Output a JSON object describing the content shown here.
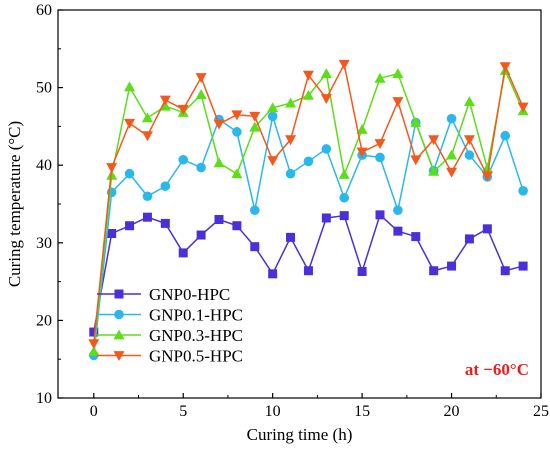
{
  "chart_data": {
    "type": "line",
    "xlabel": "Curing time (h)",
    "ylabel": "Curing temperature (°C)",
    "xlim": [
      -2,
      25
    ],
    "ylim": [
      10,
      60
    ],
    "xticks": [
      0,
      5,
      10,
      15,
      20,
      25
    ],
    "yticks": [
      10,
      20,
      30,
      40,
      50,
      60
    ],
    "grid": false,
    "legend_position": "bottom-left",
    "annotation": "at −60°C",
    "x": [
      0,
      1,
      2,
      3,
      4,
      5,
      6,
      7,
      8,
      9,
      10,
      11,
      12,
      13,
      14,
      15,
      16,
      17,
      18,
      19,
      20,
      21,
      22,
      23,
      24
    ],
    "series": [
      {
        "name": "GNP0-HPC",
        "color": "#4b2fd8",
        "marker": "square",
        "values": [
          18.5,
          31.2,
          32.2,
          33.3,
          32.5,
          28.7,
          31.0,
          33.0,
          32.2,
          29.5,
          26.0,
          30.7,
          26.4,
          33.2,
          33.5,
          26.3,
          33.6,
          31.5,
          30.8,
          26.4,
          27.0,
          30.5,
          31.8,
          26.4,
          27.0
        ]
      },
      {
        "name": "GNP0.1-HPC",
        "color": "#2ab8ec",
        "marker": "circle",
        "values": [
          15.5,
          36.5,
          38.9,
          36.0,
          37.3,
          40.7,
          39.7,
          45.9,
          44.3,
          34.2,
          46.3,
          38.9,
          40.5,
          42.1,
          35.8,
          41.3,
          41.0,
          34.2,
          45.5,
          39.3,
          46.0,
          41.3,
          38.5,
          43.8,
          36.7
        ]
      },
      {
        "name": "GNP0.3-HPC",
        "color": "#5cde18",
        "marker": "triangle-up",
        "values": [
          16.0,
          38.7,
          50.1,
          46.1,
          47.6,
          46.8,
          49.1,
          40.3,
          38.9,
          44.9,
          47.4,
          48.0,
          49.0,
          51.8,
          38.8,
          44.6,
          51.2,
          51.8,
          45.5,
          39.2,
          41.3,
          48.2,
          39.6,
          52.2,
          47.0
        ]
      },
      {
        "name": "GNP0.5-HPC",
        "color": "#f5581c",
        "marker": "triangle-down",
        "values": [
          17.0,
          39.7,
          45.4,
          43.8,
          48.4,
          47.2,
          51.3,
          45.3,
          46.5,
          46.3,
          40.6,
          43.3,
          51.6,
          48.6,
          53.0,
          41.7,
          42.8,
          48.2,
          40.7,
          43.3,
          39.1,
          43.3,
          38.6,
          52.7,
          47.5
        ]
      }
    ]
  }
}
